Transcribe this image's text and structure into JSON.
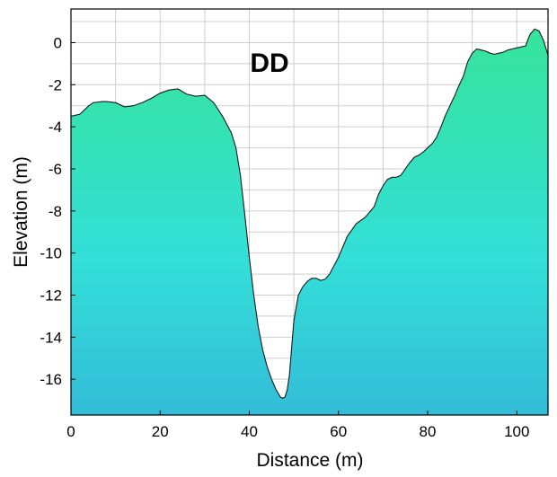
{
  "chart_data": {
    "type": "area",
    "title": "DD",
    "xlabel": "Distance (m)",
    "ylabel": "Elevation (m)",
    "xlim": [
      0,
      107
    ],
    "ylim": [
      -17.7,
      1.6
    ],
    "xticks": [
      0,
      20,
      40,
      60,
      80,
      100
    ],
    "yticks": [
      0,
      -2,
      -4,
      -6,
      -8,
      -10,
      -12,
      -14,
      -16
    ],
    "grid": true,
    "fill_gradient": [
      "#36e49b",
      "#33dfd8",
      "#33bcd8"
    ],
    "line_color": "#1a1a1a",
    "series": [
      {
        "x": [
          0,
          2,
          4,
          5,
          7,
          8,
          10,
          12,
          14,
          16,
          18,
          20,
          22,
          24,
          26,
          28,
          30,
          32,
          34,
          36,
          37,
          38,
          39,
          40,
          41,
          42,
          43,
          44,
          45,
          46,
          47,
          47.5,
          48,
          48.5,
          49,
          49.5,
          50,
          51,
          52,
          53,
          54,
          55,
          56,
          57,
          58,
          59,
          60,
          61,
          62,
          63,
          64,
          66,
          68,
          69,
          70,
          71,
          72,
          73,
          74,
          75,
          76,
          77,
          78,
          79,
          80,
          81,
          82,
          83,
          84,
          85,
          86,
          87,
          88,
          89,
          90,
          91,
          92,
          93,
          94,
          95,
          96,
          97,
          98,
          99,
          100,
          101,
          102,
          102.5,
          103,
          104,
          105,
          106,
          107
        ],
        "y": [
          -3.5,
          -3.4,
          -3.0,
          -2.85,
          -2.8,
          -2.8,
          -2.85,
          -3.05,
          -3.0,
          -2.85,
          -2.65,
          -2.4,
          -2.25,
          -2.2,
          -2.45,
          -2.55,
          -2.5,
          -2.85,
          -3.5,
          -4.3,
          -5.0,
          -6.3,
          -8.2,
          -10.2,
          -12.0,
          -13.5,
          -14.6,
          -15.4,
          -16.0,
          -16.5,
          -16.85,
          -16.9,
          -16.85,
          -16.5,
          -15.8,
          -14.5,
          -13.2,
          -12.0,
          -11.6,
          -11.35,
          -11.2,
          -11.2,
          -11.3,
          -11.25,
          -11.0,
          -10.6,
          -10.2,
          -9.7,
          -9.2,
          -8.9,
          -8.6,
          -8.3,
          -7.8,
          -7.2,
          -6.8,
          -6.5,
          -6.4,
          -6.4,
          -6.3,
          -6.0,
          -5.7,
          -5.45,
          -5.35,
          -5.2,
          -5.0,
          -4.8,
          -4.5,
          -4.0,
          -3.45,
          -3.0,
          -2.55,
          -2.05,
          -1.6,
          -0.9,
          -0.5,
          -0.3,
          -0.35,
          -0.4,
          -0.5,
          -0.55,
          -0.5,
          -0.45,
          -0.35,
          -0.3,
          -0.25,
          -0.2,
          -0.15,
          0.15,
          0.4,
          0.65,
          0.55,
          0.1,
          -0.6
        ]
      }
    ]
  }
}
